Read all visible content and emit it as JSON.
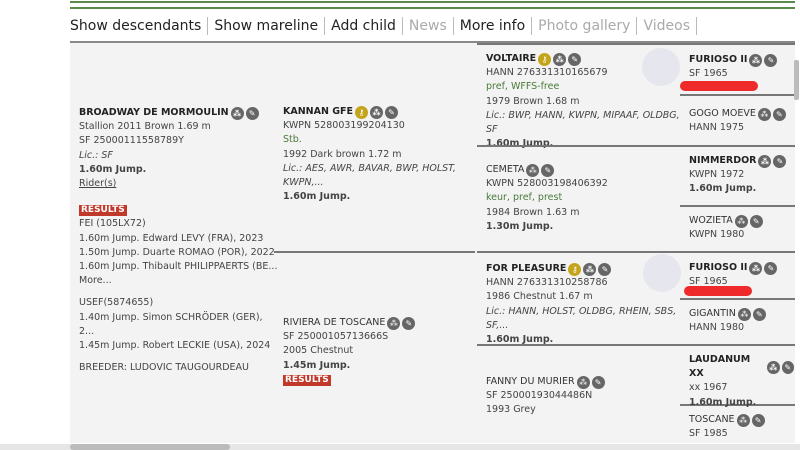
{
  "nav": {
    "items": [
      {
        "label": "Show descendants",
        "active": true
      },
      {
        "label": "Show mareline",
        "active": true
      },
      {
        "label": "Add child",
        "active": true
      },
      {
        "label": "News",
        "active": false
      },
      {
        "label": "More info",
        "active": true
      },
      {
        "label": "Photo gallery",
        "active": false
      },
      {
        "label": "Videos",
        "active": false
      }
    ]
  },
  "horse": {
    "name": "BROADWAY DE MORMOULIN",
    "line1": "Stallion 2011 Brown 1.69 m",
    "line2": "SF 25000111558789Y",
    "lic": "Lic.: SF",
    "jump": "1.60m Jump.",
    "riders": "Rider(s)",
    "results_badge": "RESULTS",
    "fei": "FEI (105LX72)",
    "fei_results": [
      "1.60m Jump. Edward LEVY (FRA), 2023",
      "1.50m Jump. Duarte ROMAO (POR), 2022",
      "1.60m Jump. Thibault PHILIPPAERTS (BE..."
    ],
    "more": "More...",
    "usef": "USEF(5874655)",
    "usef_results": [
      "1.40m Jump. Simon SCHRÖDER (GER), 2...",
      "1.45m Jump. Robert LECKIE (USA), 2024"
    ],
    "breeder": "BREEDER: LUDOVIC TAUGOURDEAU"
  },
  "sire": {
    "name": "KANNAN GFE",
    "reg": "KWPN 528003199204130",
    "pred": "Stb.",
    "desc": "1992 Dark brown 1.72 m",
    "lic": "Lic.: AES, AWR, BAVAR, BWP, HOLST, KWPN,...",
    "jump": "1.60m Jump."
  },
  "dam": {
    "name": "RIVIERA DE TOSCANE",
    "reg": "SF 25000105713666S",
    "desc": "2005 Chestnut",
    "jump": "1.45m Jump.",
    "results_badge": "RESULTS"
  },
  "ss": {
    "name": "VOLTAIRE",
    "reg": "HANN 276331310165679",
    "pred": "pref, WFFS-free",
    "desc": "1979 Brown 1.68 m",
    "lic": "Lic.: BWP, HANN, KWPN, MIPAAF, OLDBG, SF",
    "jump": "1.60m Jump."
  },
  "sd": {
    "name": "CEMETA",
    "reg": "KWPN 528003198406392",
    "pred": "keur, pref, prest",
    "desc": "1984 Brown 1.63 m",
    "jump": "1.30m Jump."
  },
  "ds": {
    "name": "FOR PLEASURE",
    "reg": "HANN 276331310258786",
    "desc": "1986 Chestnut 1.67 m",
    "lic": "Lic.: HANN, HOLST, OLDBG, RHEIN, SBS, SF,...",
    "jump": "1.60m Jump."
  },
  "dd": {
    "name": "FANNY DU MURIER",
    "reg": "SF 25000193044486N",
    "desc": "1993 Grey"
  },
  "gen4": [
    {
      "name": "FURIOSO II",
      "line": "SF 1965"
    },
    {
      "name": "GOGO MOEVE",
      "line": "HANN 1975"
    },
    {
      "name": "NIMMERDOR",
      "line": "KWPN 1972",
      "jump": "1.60m Jump."
    },
    {
      "name": "WOZIETA",
      "line": "KWPN 1980"
    },
    {
      "name": "FURIOSO II",
      "line": "SF 1965"
    },
    {
      "name": "GIGANTIN",
      "line": "HANN 1980"
    },
    {
      "name": "LAUDANUM XX",
      "line": "xx 1967",
      "jump": "1.60m Jump."
    },
    {
      "name": "TOSCANE",
      "line": "SF 1985"
    }
  ],
  "icons": {
    "pedigree": "pedigree-icon",
    "edit": "pencil-icon",
    "approved": "key-icon"
  },
  "colors": {
    "accent_green": "#5a8a4a",
    "results_red": "#c0392b",
    "approved_gold": "#c4a41a",
    "redaction": "#ee2a2a"
  }
}
